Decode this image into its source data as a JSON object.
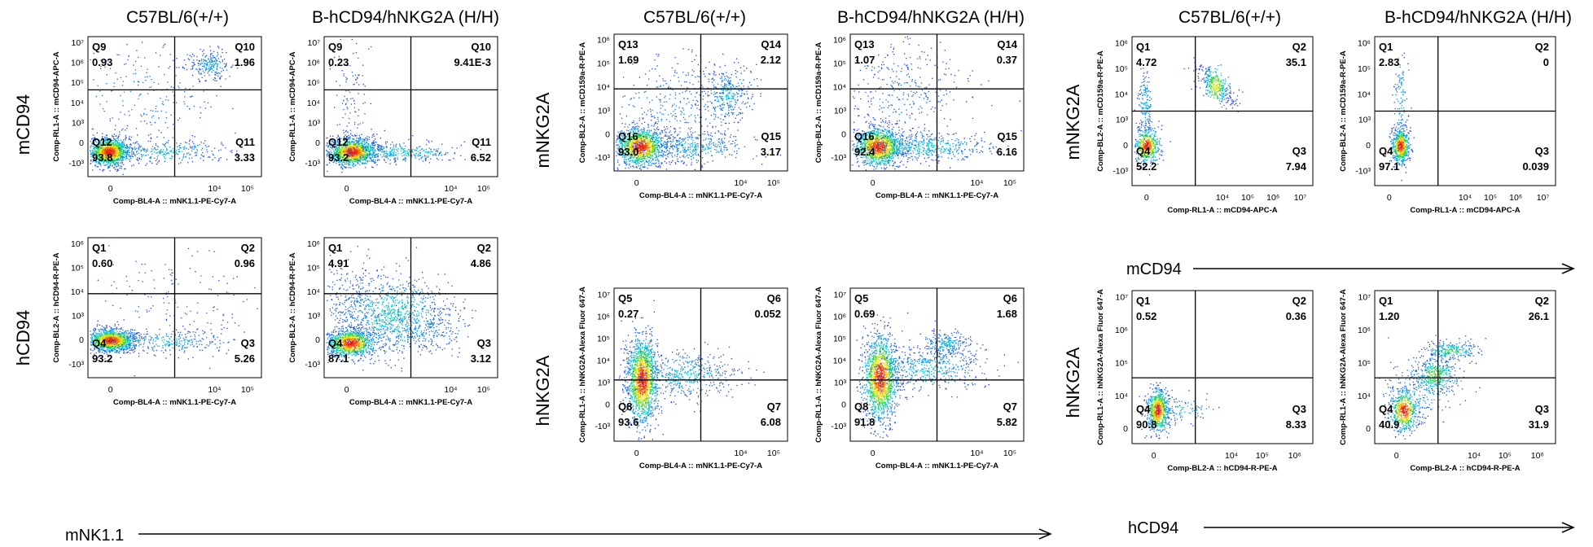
{
  "col_titles": [
    "C57BL/6(+/+)",
    "B-hCD94/hNKG2A (H/H)",
    "C57BL/6(+/+)",
    "B-hCD94/hNKG2A (H/H)",
    "C57BL/6(+/+)",
    "B-hCD94/hNKG2A (H/H)"
  ],
  "row_labels": {
    "mCD94": "mCD94",
    "hCD94": "hCD94",
    "mNKG2A": "mNKG2A",
    "hNKG2A": "hNKG2A",
    "mNKG2A_right": "mNKG2A",
    "hNKG2A_right": "hNKG2A"
  },
  "bottom_labels": {
    "mNK11": "mNK1.1",
    "mCD94": "mCD94",
    "hCD94": "hCD94"
  },
  "chart_data": [
    {
      "type": "scatter",
      "subtype": "flow-cytometry-density-plot",
      "title": "C57BL/6(+/+)",
      "row": "mCD94",
      "xlabel": "Comp-BL4-A :: mNK1.1-PE-Cy7-A",
      "ylabel": "Comp-RL1-A :: mCD94-APC-A",
      "x_ticks": [
        "0",
        "10⁴",
        "10⁵"
      ],
      "y_ticks": [
        "-10³",
        "0",
        "10³",
        "10⁴",
        "10⁵",
        "10⁶",
        "10⁷"
      ],
      "gate": [
        0.5,
        0.62
      ],
      "quadrants": {
        "Q9": "0.93",
        "Q10": "1.96",
        "Q11": "3.33",
        "Q12": "93.8"
      }
    },
    {
      "type": "scatter",
      "subtype": "flow-cytometry-density-plot",
      "title": "B-hCD94/hNKG2A (H/H)",
      "row": "mCD94",
      "xlabel": "Comp-BL4-A :: mNK1.1-PE-Cy7-A",
      "ylabel": "Comp-RL1-A :: mCD94-APC-A",
      "x_ticks": [
        "0",
        "10⁴",
        "10⁵"
      ],
      "y_ticks": [
        "-10³",
        "0",
        "10³",
        "10⁴",
        "10⁵",
        "10⁶",
        "10⁷"
      ],
      "gate": [
        0.5,
        0.62
      ],
      "quadrants": {
        "Q9": "0.23",
        "Q10": "9.41E-3",
        "Q11": "6.52",
        "Q12": "93.2"
      }
    },
    {
      "type": "scatter",
      "subtype": "flow-cytometry-density-plot",
      "title": "C57BL/6(+/+)",
      "row": "hCD94",
      "xlabel": "Comp-BL4-A :: mNK1.1-PE-Cy7-A",
      "ylabel": "Comp-BL2-A :: hCD94-R-PE-A",
      "x_ticks": [
        "0",
        "10⁴",
        "10⁵"
      ],
      "y_ticks": [
        "-10³",
        "0",
        "10³",
        "10⁴",
        "10⁵",
        "10⁶"
      ],
      "gate": [
        0.5,
        0.6
      ],
      "quadrants": {
        "Q1": "0.60",
        "Q2": "0.96",
        "Q3": "5.26",
        "Q4": "93.2"
      }
    },
    {
      "type": "scatter",
      "subtype": "flow-cytometry-density-plot",
      "title": "B-hCD94/hNKG2A (H/H)",
      "row": "hCD94",
      "xlabel": "Comp-BL4-A :: mNK1.1-PE-Cy7-A",
      "ylabel": "Comp-BL2-A :: hCD94-R-PE-A",
      "x_ticks": [
        "0",
        "10⁴",
        "10⁵"
      ],
      "y_ticks": [
        "-10³",
        "0",
        "10³",
        "10⁴",
        "10⁵",
        "10⁶"
      ],
      "gate": [
        0.5,
        0.6
      ],
      "quadrants": {
        "Q1": "4.91",
        "Q2": "4.86",
        "Q3": "3.12",
        "Q4": "87.1"
      }
    },
    {
      "type": "scatter",
      "subtype": "flow-cytometry-density-plot",
      "title": "C57BL/6(+/+)",
      "row": "mNKG2A",
      "xlabel": "Comp-BL4-A :: mNK1.1-PE-Cy7-A",
      "ylabel": "Comp-BL2-A :: mCD159a-R-PE-A",
      "x_ticks": [
        "0",
        "10⁴",
        "10⁵"
      ],
      "y_ticks": [
        "-10³",
        "0",
        "10³",
        "10⁴",
        "10⁵",
        "10⁶"
      ],
      "gate": [
        0.5,
        0.6
      ],
      "quadrants": {
        "Q13": "1.69",
        "Q14": "2.12",
        "Q15": "3.17",
        "Q16": "93.0"
      }
    },
    {
      "type": "scatter",
      "subtype": "flow-cytometry-density-plot",
      "title": "B-hCD94/hNKG2A (H/H)",
      "row": "mNKG2A",
      "xlabel": "Comp-BL4-A :: mNK1.1-PE-Cy7-A",
      "ylabel": "Comp-BL2-A :: mCD159a-R-PE-A",
      "x_ticks": [
        "0",
        "10⁴",
        "10⁵"
      ],
      "y_ticks": [
        "-10³",
        "0",
        "10³",
        "10⁴",
        "10⁵",
        "10⁶"
      ],
      "gate": [
        0.5,
        0.6
      ],
      "quadrants": {
        "Q13": "1.07",
        "Q14": "0.37",
        "Q15": "6.16",
        "Q16": "92.4"
      }
    },
    {
      "type": "scatter",
      "subtype": "flow-cytometry-density-plot",
      "title": "C57BL/6(+/+)",
      "row": "hNKG2A",
      "xlabel": "Comp-BL4-A :: mNK1.1-PE-Cy7-A",
      "ylabel": "Comp-RL1-A :: hNKG2A-Alexa Fluor 647-A",
      "x_ticks": [
        "0",
        "10⁴",
        "10⁵"
      ],
      "y_ticks": [
        "-10³",
        "0",
        "10³",
        "10⁴",
        "10⁵",
        "10⁶",
        "10⁷"
      ],
      "gate": [
        0.5,
        0.4
      ],
      "quadrants": {
        "Q5": "0.27",
        "Q6": "0.052",
        "Q7": "6.08",
        "Q8": "93.6"
      }
    },
    {
      "type": "scatter",
      "subtype": "flow-cytometry-density-plot",
      "title": "B-hCD94/hNKG2A (H/H)",
      "row": "hNKG2A",
      "xlabel": "Comp-BL4-A :: mNK1.1-PE-Cy7-A",
      "ylabel": "Comp-RL1-A :: hNKG2A-Alexa Fluor 647-A",
      "x_ticks": [
        "0",
        "10⁴",
        "10⁵"
      ],
      "y_ticks": [
        "-10³",
        "0",
        "10³",
        "10⁴",
        "10⁵",
        "10⁶",
        "10⁷"
      ],
      "gate": [
        0.5,
        0.4
      ],
      "quadrants": {
        "Q5": "0.69",
        "Q6": "1.68",
        "Q7": "5.82",
        "Q8": "91.8"
      }
    },
    {
      "type": "scatter",
      "subtype": "flow-cytometry-density-plot",
      "title": "C57BL/6(+/+)",
      "row": "mNKG2A",
      "xlabel": "Comp-RL1-A :: mCD94-APC-A",
      "ylabel": "Comp-BL2-A :: mCD159a-R-PE-A",
      "x_ticks": [
        "0",
        "10⁴",
        "10⁵",
        "10⁶",
        "10⁷"
      ],
      "y_ticks": [
        "-10³",
        "0",
        "10³",
        "10⁴",
        "10⁵",
        "10⁶"
      ],
      "gate": [
        0.35,
        0.5
      ],
      "quadrants": {
        "Q1": "4.72",
        "Q2": "35.1",
        "Q3": "7.94",
        "Q4": "52.2"
      }
    },
    {
      "type": "scatter",
      "subtype": "flow-cytometry-density-plot",
      "title": "B-hCD94/hNKG2A (H/H)",
      "row": "mNKG2A",
      "xlabel": "Comp-RL1-A :: mCD94-APC-A",
      "ylabel": "Comp-BL2-A :: mCD159a-R-PE-A",
      "x_ticks": [
        "0",
        "10⁴",
        "10⁵",
        "10⁶",
        "10⁷"
      ],
      "y_ticks": [
        "-10³",
        "0",
        "10³",
        "10⁴",
        "10⁵",
        "10⁶"
      ],
      "gate": [
        0.35,
        0.5
      ],
      "quadrants": {
        "Q1": "2.83",
        "Q2": "0",
        "Q3": "0.039",
        "Q4": "97.1"
      }
    },
    {
      "type": "scatter",
      "subtype": "flow-cytometry-density-plot",
      "title": "C57BL/6(+/+)",
      "row": "hNKG2A",
      "xlabel": "Comp-BL2-A :: hCD94-R-PE-A",
      "ylabel": "Comp-RL1-A :: hNKG2A-Alexa Fluor 647-A",
      "x_ticks": [
        "0",
        "10⁴",
        "10⁵",
        "10⁶"
      ],
      "y_ticks": [
        "0",
        "10⁴",
        "10⁵",
        "10⁶",
        "10⁷"
      ],
      "gate": [
        0.35,
        0.43
      ],
      "quadrants": {
        "Q1": "0.52",
        "Q2": "0.36",
        "Q3": "8.33",
        "Q4": "90.8"
      }
    },
    {
      "type": "scatter",
      "subtype": "flow-cytometry-density-plot",
      "title": "B-hCD94/hNKG2A (H/H)",
      "row": "hNKG2A",
      "xlabel": "Comp-BL2-A :: hCD94-R-PE-A",
      "ylabel": "Comp-RL1-A :: hNKG2A-Alexa Fluor 647-A",
      "x_ticks": [
        "0",
        "10⁴",
        "10⁵",
        "10⁶"
      ],
      "y_ticks": [
        "0",
        "10⁴",
        "10⁵",
        "10⁶",
        "10⁷"
      ],
      "gate": [
        0.35,
        0.43
      ],
      "quadrants": {
        "Q1": "1.20",
        "Q2": "26.1",
        "Q3": "31.9",
        "Q4": "40.9"
      }
    }
  ]
}
